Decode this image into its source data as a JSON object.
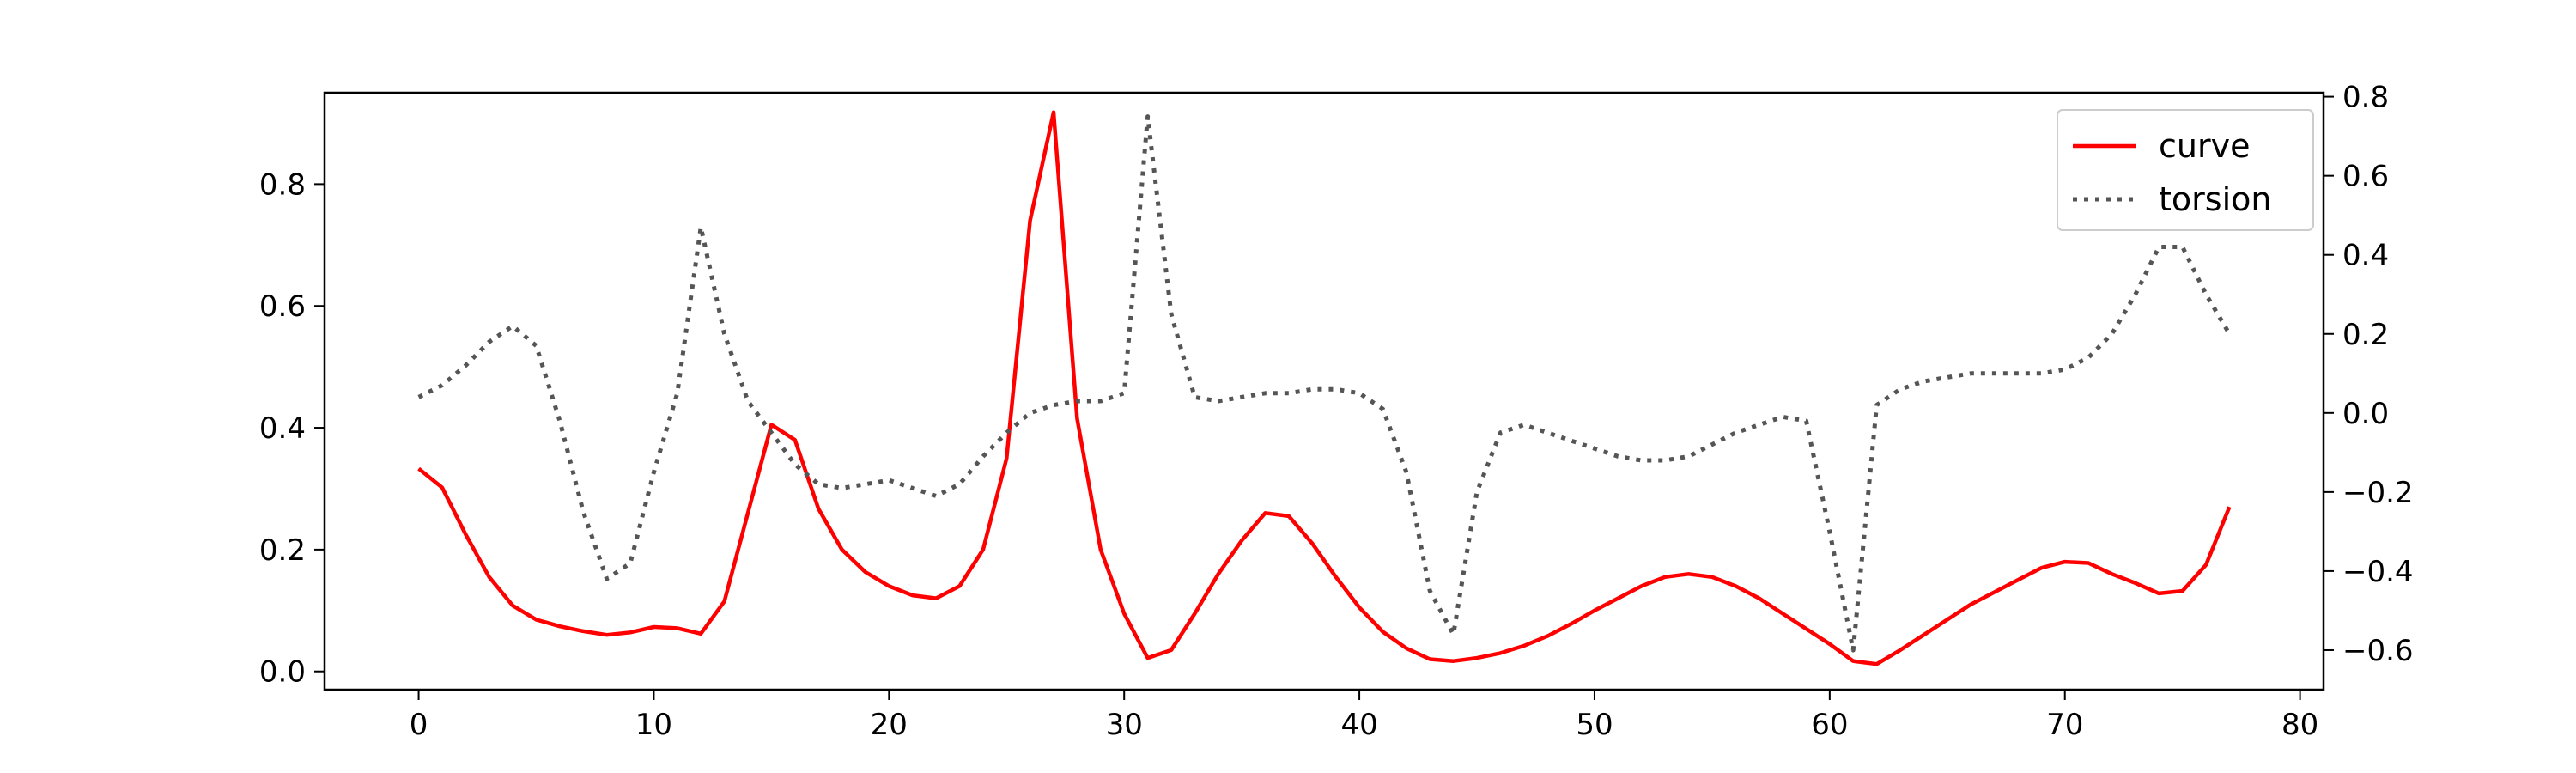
{
  "chart_data": {
    "type": "line",
    "title": "",
    "xlabel": "",
    "ylabel": "",
    "xlim": [
      -4,
      81
    ],
    "xticks": [
      0,
      10,
      20,
      30,
      40,
      50,
      60,
      70,
      80
    ],
    "ylim_left": [
      -0.03,
      0.95
    ],
    "yticks_left": [
      0.0,
      0.2,
      0.4,
      0.6,
      0.8
    ],
    "ylim_right": [
      -0.7,
      0.81
    ],
    "yticks_right": [
      -0.6,
      -0.4,
      -0.2,
      0.0,
      0.2,
      0.4,
      0.6,
      0.8
    ],
    "legend_position": "top-right",
    "grid": false,
    "series": [
      {
        "name": "curve",
        "axis": "left",
        "color": "#ff0000",
        "style": "solid",
        "x": [
          0,
          1,
          2,
          3,
          4,
          5,
          6,
          7,
          8,
          9,
          10,
          11,
          12,
          13,
          14,
          15,
          16,
          17,
          18,
          19,
          20,
          21,
          22,
          23,
          24,
          25,
          26,
          27,
          28,
          29,
          30,
          31,
          32,
          33,
          34,
          35,
          36,
          37,
          38,
          39,
          40,
          41,
          42,
          43,
          44,
          45,
          46,
          47,
          48,
          49,
          50,
          51,
          52,
          53,
          54,
          55,
          56,
          57,
          58,
          59,
          60,
          61,
          62,
          63,
          64,
          65,
          66,
          67,
          68,
          69,
          70,
          71,
          72,
          73,
          74,
          75,
          76,
          77
        ],
        "y": [
          0.333,
          0.302,
          0.225,
          0.155,
          0.108,
          0.085,
          0.074,
          0.066,
          0.06,
          0.064,
          0.073,
          0.071,
          0.062,
          0.115,
          0.26,
          0.405,
          0.38,
          0.267,
          0.2,
          0.163,
          0.14,
          0.125,
          0.12,
          0.14,
          0.2,
          0.35,
          0.74,
          0.918,
          0.415,
          0.2,
          0.095,
          0.022,
          0.035,
          0.095,
          0.16,
          0.215,
          0.26,
          0.255,
          0.21,
          0.155,
          0.105,
          0.065,
          0.038,
          0.02,
          0.017,
          0.022,
          0.03,
          0.042,
          0.058,
          0.078,
          0.1,
          0.12,
          0.14,
          0.155,
          0.16,
          0.155,
          0.14,
          0.12,
          0.095,
          0.07,
          0.045,
          0.017,
          0.012,
          0.035,
          0.06,
          0.085,
          0.11,
          0.13,
          0.15,
          0.17,
          0.18,
          0.178,
          0.16,
          0.145,
          0.128,
          0.132,
          0.175,
          0.27
        ]
      },
      {
        "name": "torsion",
        "axis": "right",
        "color": "#555555",
        "style": "dotted",
        "x": [
          0,
          1,
          2,
          3,
          4,
          5,
          6,
          7,
          8,
          9,
          10,
          11,
          12,
          13,
          14,
          15,
          16,
          17,
          18,
          19,
          20,
          21,
          22,
          23,
          24,
          25,
          26,
          27,
          28,
          29,
          30,
          31,
          32,
          33,
          34,
          35,
          36,
          37,
          38,
          39,
          40,
          41,
          42,
          43,
          44,
          45,
          46,
          47,
          48,
          49,
          50,
          51,
          52,
          53,
          54,
          55,
          56,
          57,
          58,
          59,
          60,
          61,
          62,
          63,
          64,
          65,
          66,
          67,
          68,
          69,
          70,
          71,
          72,
          73,
          74,
          75,
          76,
          77
        ],
        "y": [
          0.04,
          0.07,
          0.12,
          0.18,
          0.22,
          0.17,
          -0.02,
          -0.25,
          -0.42,
          -0.38,
          -0.15,
          0.05,
          0.47,
          0.2,
          0.03,
          -0.05,
          -0.13,
          -0.18,
          -0.19,
          -0.18,
          -0.17,
          -0.19,
          -0.21,
          -0.18,
          -0.11,
          -0.05,
          0.0,
          0.02,
          0.03,
          0.03,
          0.05,
          0.75,
          0.25,
          0.04,
          0.03,
          0.04,
          0.05,
          0.05,
          0.06,
          0.06,
          0.05,
          0.01,
          -0.15,
          -0.45,
          -0.56,
          -0.2,
          -0.05,
          -0.03,
          -0.05,
          -0.07,
          -0.09,
          -0.11,
          -0.12,
          -0.12,
          -0.11,
          -0.08,
          -0.05,
          -0.03,
          -0.01,
          -0.02,
          -0.3,
          -0.6,
          0.02,
          0.06,
          0.08,
          0.09,
          0.1,
          0.1,
          0.1,
          0.1,
          0.11,
          0.14,
          0.2,
          0.3,
          0.42,
          0.42,
          0.3,
          0.2
        ]
      }
    ]
  }
}
